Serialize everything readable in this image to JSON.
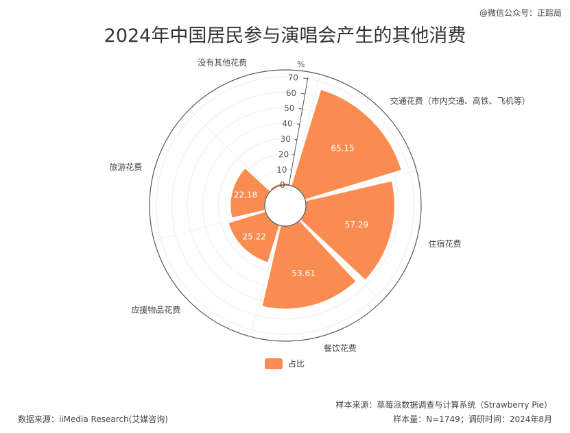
{
  "watermark": "@微信公众号：正踪局",
  "chart_data": {
    "type": "polar-bar",
    "title": "2024年中国居民参与演唱会产生的其他消费",
    "radial_unit": "%",
    "radial_max": 70,
    "radial_ticks": [
      0,
      10,
      20,
      30,
      40,
      50,
      60,
      70
    ],
    "categories": [
      "交通花费（市内交通、高铁、飞机等）",
      "住宿花费",
      "餐饮花费",
      "应援物品花费",
      "旅游花费",
      "没有其他花费"
    ],
    "series": [
      {
        "name": "占比",
        "values": [
          65.15,
          57.29,
          53.61,
          25.22,
          22.18,
          1.14
        ]
      }
    ],
    "color": "#fb8c51",
    "legend_position": "bottom"
  },
  "legend": {
    "label": "占比"
  },
  "footer": {
    "left": "数据来源：iiMedia Research(艾媒咨询)",
    "right_line1": "样本来源：草莓派数据调查与计算系统（Strawberry Pie）",
    "right_line2": "样本量：N=1749；调研时间：2024年8月"
  }
}
